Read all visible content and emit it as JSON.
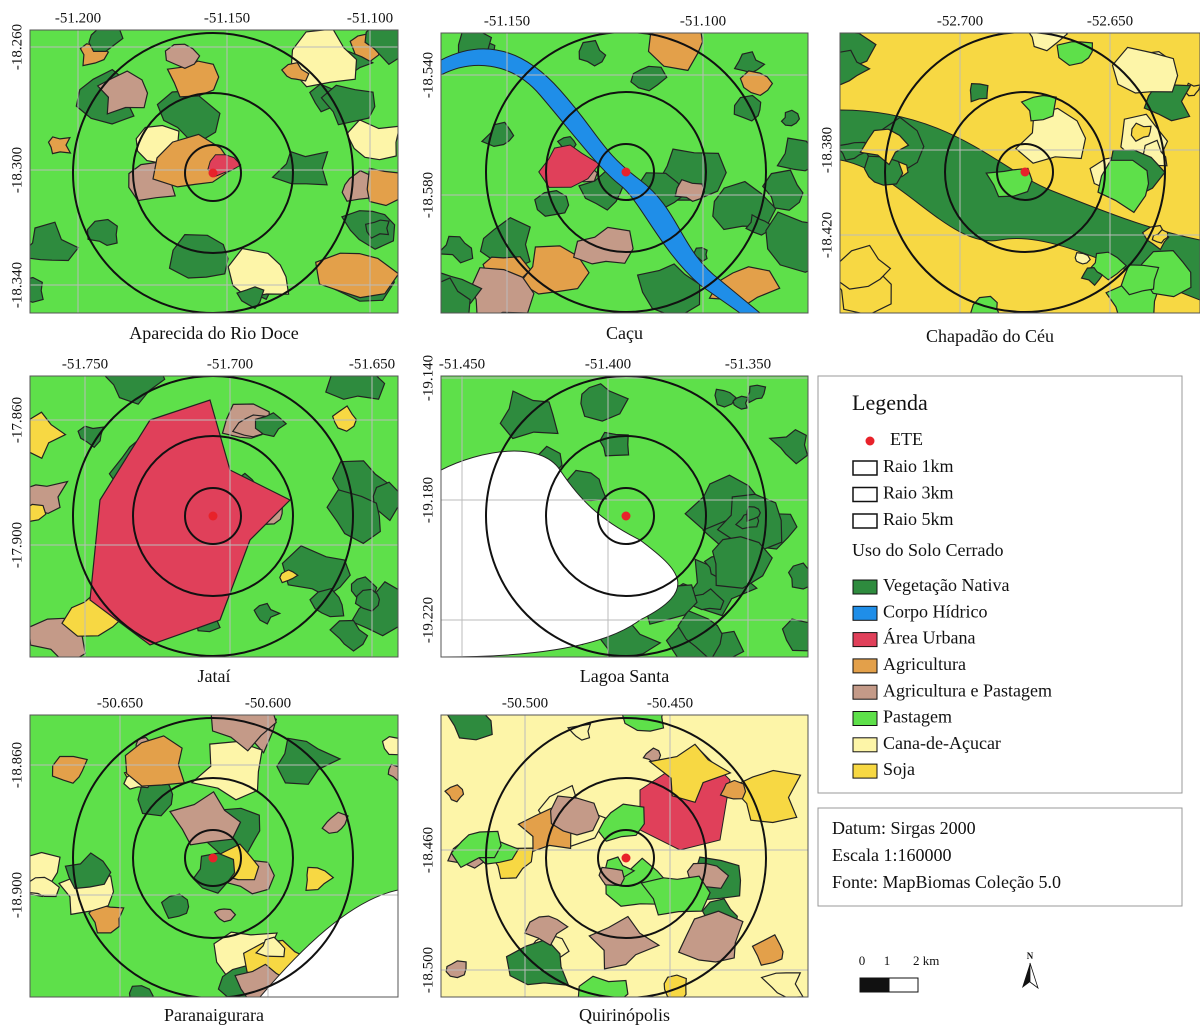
{
  "panels": [
    {
      "name": "Aparecida do Rio Doce",
      "x_ticks": [
        "-51.200",
        "-51.150",
        "-51.100"
      ],
      "y_ticks": [
        "-18.260",
        "-18.300",
        "-18.340"
      ]
    },
    {
      "name": "Caçu",
      "x_ticks": [
        "-51.150",
        "-51.100"
      ],
      "y_ticks": [
        "-18.540",
        "-18.580"
      ]
    },
    {
      "name": "Chapadão do Céu",
      "x_ticks": [
        "-52.700",
        "-52.650"
      ],
      "y_ticks": [
        "-18.380",
        "-18.420"
      ]
    },
    {
      "name": "Jataí",
      "x_ticks": [
        "-51.750",
        "-51.700",
        "-51.650"
      ],
      "y_ticks": [
        "-17.860",
        "-17.900"
      ]
    },
    {
      "name": "Lagoa Santa",
      "x_ticks": [
        "-51.450",
        "-51.400",
        "-51.350"
      ],
      "y_ticks": [
        "-19.140",
        "-19.180",
        "-19.220"
      ]
    },
    {
      "name": "Paranaigurara",
      "x_ticks": [
        "-50.650",
        "-50.600"
      ],
      "y_ticks": [
        "-18.860",
        "-18.900"
      ]
    },
    {
      "name": "Quirinópolis",
      "x_ticks": [
        "-50.500",
        "-50.450"
      ],
      "y_ticks": [
        "-18.460",
        "-18.500"
      ]
    }
  ],
  "legend": {
    "title": "Legenda",
    "ete": "ETE",
    "radii": [
      "Raio 1km",
      "Raio 3km",
      "Raio 5km"
    ],
    "land_use_title": "Uso do Solo Cerrado",
    "classes": [
      {
        "label": "Vegetação Nativa",
        "color": "#2e8b3e"
      },
      {
        "label": "Corpo Hídrico",
        "color": "#1f8ee8"
      },
      {
        "label": "Área Urbana",
        "color": "#e0405a"
      },
      {
        "label": "Agricultura",
        "color": "#e3a04a"
      },
      {
        "label": "Agricultura e Pastagem",
        "color": "#c49a88"
      },
      {
        "label": "Pastagem",
        "color": "#5ee04a"
      },
      {
        "label": "Cana-de-Açucar",
        "color": "#fdf5a8"
      },
      {
        "label": "Soja",
        "color": "#f7d843"
      }
    ]
  },
  "info": [
    "Datum: Sirgas 2000",
    "Escala 1:160000",
    "Fonte: MapBiomas Coleção 5.0"
  ],
  "scale_bar": [
    "0",
    "1",
    "2 km"
  ],
  "north": "N"
}
